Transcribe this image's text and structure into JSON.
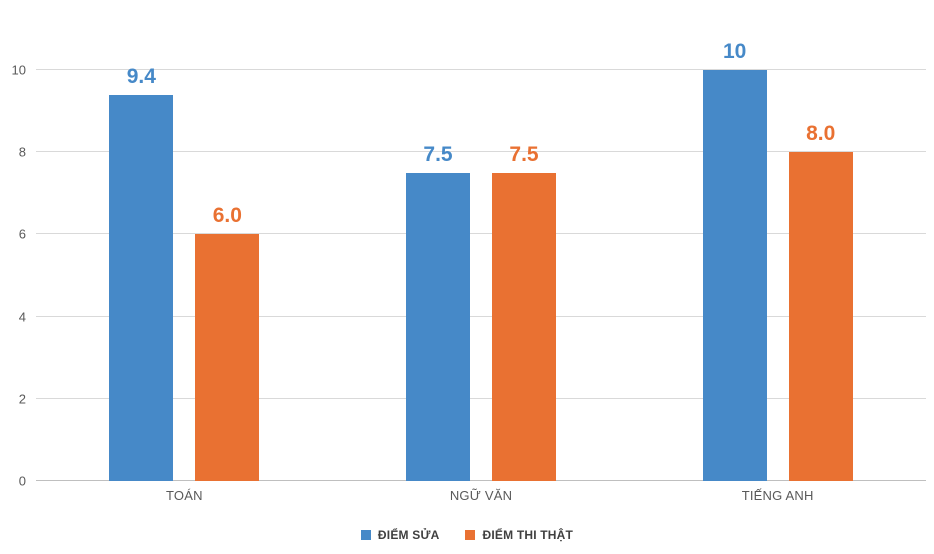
{
  "chart_data": {
    "type": "bar",
    "title": "",
    "xlabel": "",
    "ylabel": "",
    "categories": [
      "TOÁN",
      "NGỮ VĂN",
      "TIẾNG ANH"
    ],
    "series": [
      {
        "name": "ĐIỂM SỬA",
        "color": "#4689c8",
        "values": [
          9.4,
          7.5,
          10
        ],
        "labels": [
          "9.4",
          "7.5",
          "10"
        ]
      },
      {
        "name": "ĐIỂM THI THẬT",
        "color": "#e97132",
        "values": [
          6.0,
          7.5,
          8.0
        ],
        "labels": [
          "6.0",
          "7.5",
          "8.0"
        ]
      }
    ],
    "ylim": [
      0,
      10
    ],
    "yticks": [
      0,
      2,
      4,
      6,
      8,
      10
    ],
    "grid": true,
    "legend_position": "bottom"
  },
  "colors": {
    "gridline": "#d9d9d9",
    "baseline": "#bfbfbf",
    "axis_text": "#595959",
    "legend_text": "#404040",
    "background": "#ffffff"
  }
}
